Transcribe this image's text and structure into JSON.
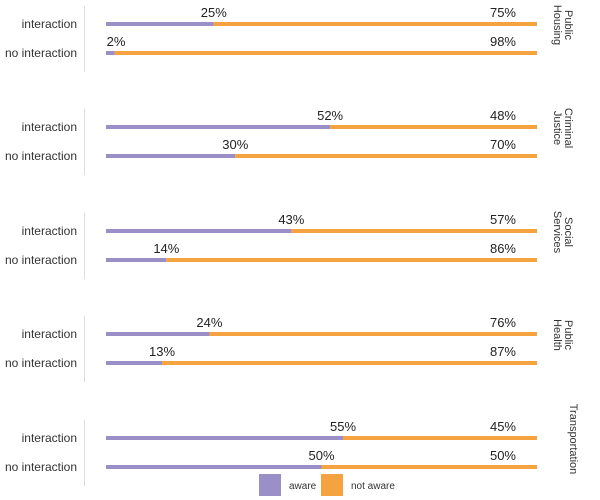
{
  "chart_data": {
    "type": "bar",
    "stacked": true,
    "orientation": "horizontal",
    "colors": {
      "aware": "#9b8fc7",
      "not_aware": "#f4a340"
    },
    "legend": {
      "position": "bottom-center",
      "items": [
        "aware",
        "not aware"
      ]
    },
    "xlim": [
      0,
      100
    ],
    "facets": [
      {
        "label": "Public Housing",
        "rows": [
          {
            "label": "interaction",
            "aware": 25,
            "not_aware": 75
          },
          {
            "label": "no interaction",
            "aware": 2,
            "not_aware": 98
          }
        ]
      },
      {
        "label": "Criminal Justice",
        "rows": [
          {
            "label": "interaction",
            "aware": 52,
            "not_aware": 48
          },
          {
            "label": "no interaction",
            "aware": 30,
            "not_aware": 70
          }
        ]
      },
      {
        "label": "Social Services",
        "rows": [
          {
            "label": "interaction",
            "aware": 43,
            "not_aware": 57
          },
          {
            "label": "no interaction",
            "aware": 14,
            "not_aware": 86
          }
        ]
      },
      {
        "label": "Public Health",
        "rows": [
          {
            "label": "interaction",
            "aware": 24,
            "not_aware": 76
          },
          {
            "label": "no interaction",
            "aware": 13,
            "not_aware": 87
          }
        ]
      },
      {
        "label": "Transportation",
        "rows": [
          {
            "label": "interaction",
            "aware": 55,
            "not_aware": 45
          },
          {
            "label": "no interaction",
            "aware": 50,
            "not_aware": 50
          }
        ]
      }
    ]
  }
}
